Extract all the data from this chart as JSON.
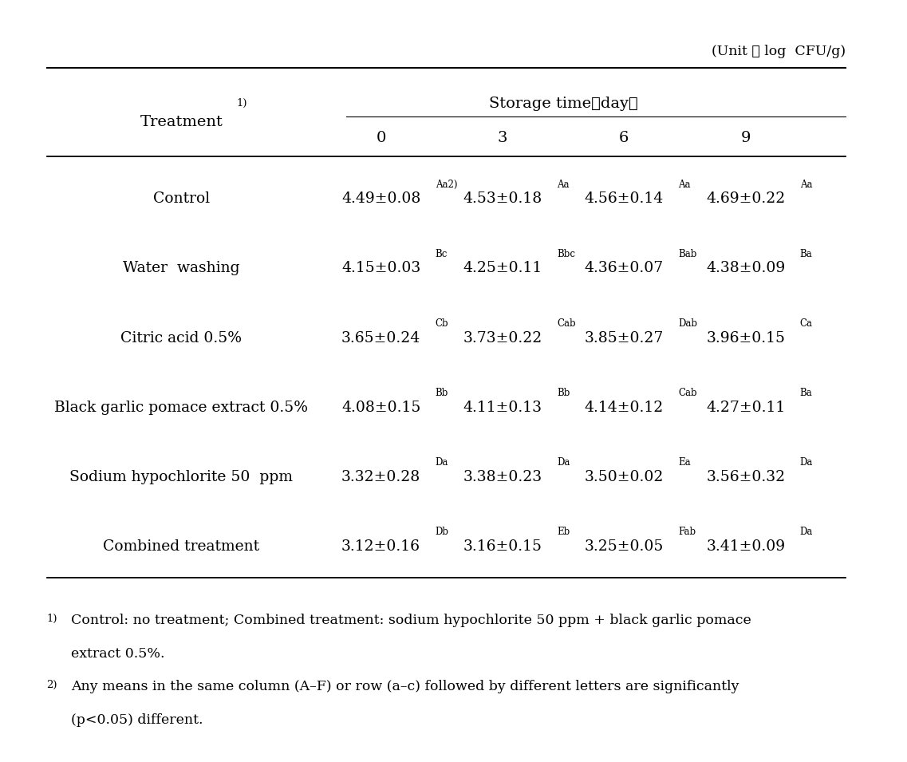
{
  "unit_text": "(Unit ： log  CFU/g)",
  "header_storage": "Storage time（day）",
  "header_treatment": "Treatment",
  "header_treatment_super": "1)",
  "header_cols": [
    "0",
    "3",
    "6",
    "9"
  ],
  "rows": [
    {
      "treatment": "Control",
      "values": [
        {
          "main": "4.49±0.08",
          "super": "Aa2)"
        },
        {
          "main": "4.53±0.18",
          "super": "Aa"
        },
        {
          "main": "4.56±0.14",
          "super": "Aa"
        },
        {
          "main": "4.69±0.22",
          "super": "Aa"
        }
      ]
    },
    {
      "treatment": "Water  washing",
      "values": [
        {
          "main": "4.15±0.03",
          "super": "Bc"
        },
        {
          "main": "4.25±0.11",
          "super": "Bbc"
        },
        {
          "main": "4.36±0.07",
          "super": "Bab"
        },
        {
          "main": "4.38±0.09",
          "super": "Ba"
        }
      ]
    },
    {
      "treatment": "Citric acid 0.5%",
      "values": [
        {
          "main": "3.65±0.24",
          "super": "Cb"
        },
        {
          "main": "3.73±0.22",
          "super": "Cab"
        },
        {
          "main": "3.85±0.27",
          "super": "Dab"
        },
        {
          "main": "3.96±0.15",
          "super": "Ca"
        }
      ]
    },
    {
      "treatment": "Black garlic pomace extract 0.5%",
      "values": [
        {
          "main": "4.08±0.15",
          "super": "Bb"
        },
        {
          "main": "4.11±0.13",
          "super": "Bb"
        },
        {
          "main": "4.14±0.12",
          "super": "Cab"
        },
        {
          "main": "4.27±0.11",
          "super": "Ba"
        }
      ]
    },
    {
      "treatment": "Sodium hypochlorite 50  ppm",
      "values": [
        {
          "main": "3.32±0.28",
          "super": "Da"
        },
        {
          "main": "3.38±0.23",
          "super": "Da"
        },
        {
          "main": "3.50±0.02",
          "super": "Ea"
        },
        {
          "main": "3.56±0.32",
          "super": "Da"
        }
      ]
    },
    {
      "treatment": "Combined treatment",
      "values": [
        {
          "main": "3.12±0.16",
          "super": "Db"
        },
        {
          "main": "3.16±0.15",
          "super": "Eb"
        },
        {
          "main": "3.25±0.05",
          "super": "Fab"
        },
        {
          "main": "3.41±0.09",
          "super": "Da"
        }
      ]
    }
  ],
  "fn1_super": "1)",
  "fn1_text": "Control: no treatment; Combined treatment: sodium hypochlorite 50 ppm + black garlic pomace",
  "fn1b_text": "extract 0.5%.",
  "fn2_super": "2)",
  "fn2_text": "Any means in the same column (A–F) or row (a–c) followed by different letters are significantly",
  "fn2b_text": "(p<0.05) different.",
  "bg_color": "#ffffff",
  "text_color": "#000000",
  "font_size_main": 13.5,
  "font_size_super": 8.5,
  "font_size_header": 14,
  "font_size_unit": 12.5,
  "font_size_footnote": 12.5
}
